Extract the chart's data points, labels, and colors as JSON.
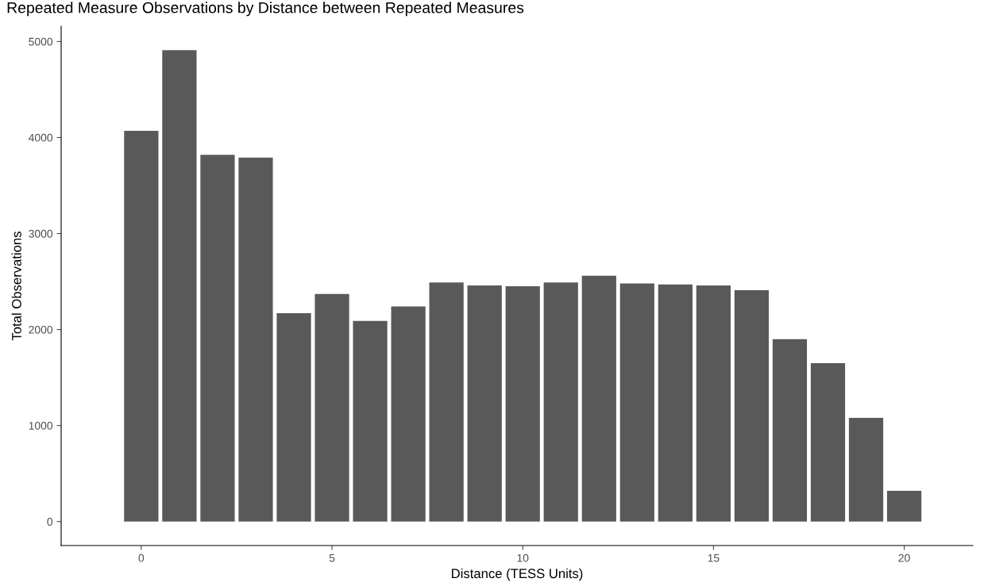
{
  "chart_data": {
    "type": "bar",
    "title": "Repeated Measure Observations by Distance between Repeated Measures",
    "xlabel": "Distance (TESS Units)",
    "ylabel": "Total Observations",
    "x": [
      0,
      1,
      2,
      3,
      4,
      5,
      6,
      7,
      8,
      9,
      10,
      11,
      12,
      13,
      14,
      15,
      16,
      17,
      18,
      19,
      20
    ],
    "values": [
      4070,
      4910,
      3820,
      3790,
      2170,
      2370,
      2090,
      2240,
      2490,
      2460,
      2450,
      2490,
      2560,
      2480,
      2470,
      2460,
      2410,
      1900,
      1650,
      1080,
      320
    ],
    "color": "#595959",
    "xlim": [
      -2.1,
      21.8
    ],
    "xticks": [
      0,
      5,
      10,
      15,
      20
    ],
    "ylim": [
      -250,
      5160
    ],
    "yticks": [
      0,
      1000,
      2000,
      3000,
      4000,
      5000
    ],
    "grid": false,
    "legend": false
  }
}
